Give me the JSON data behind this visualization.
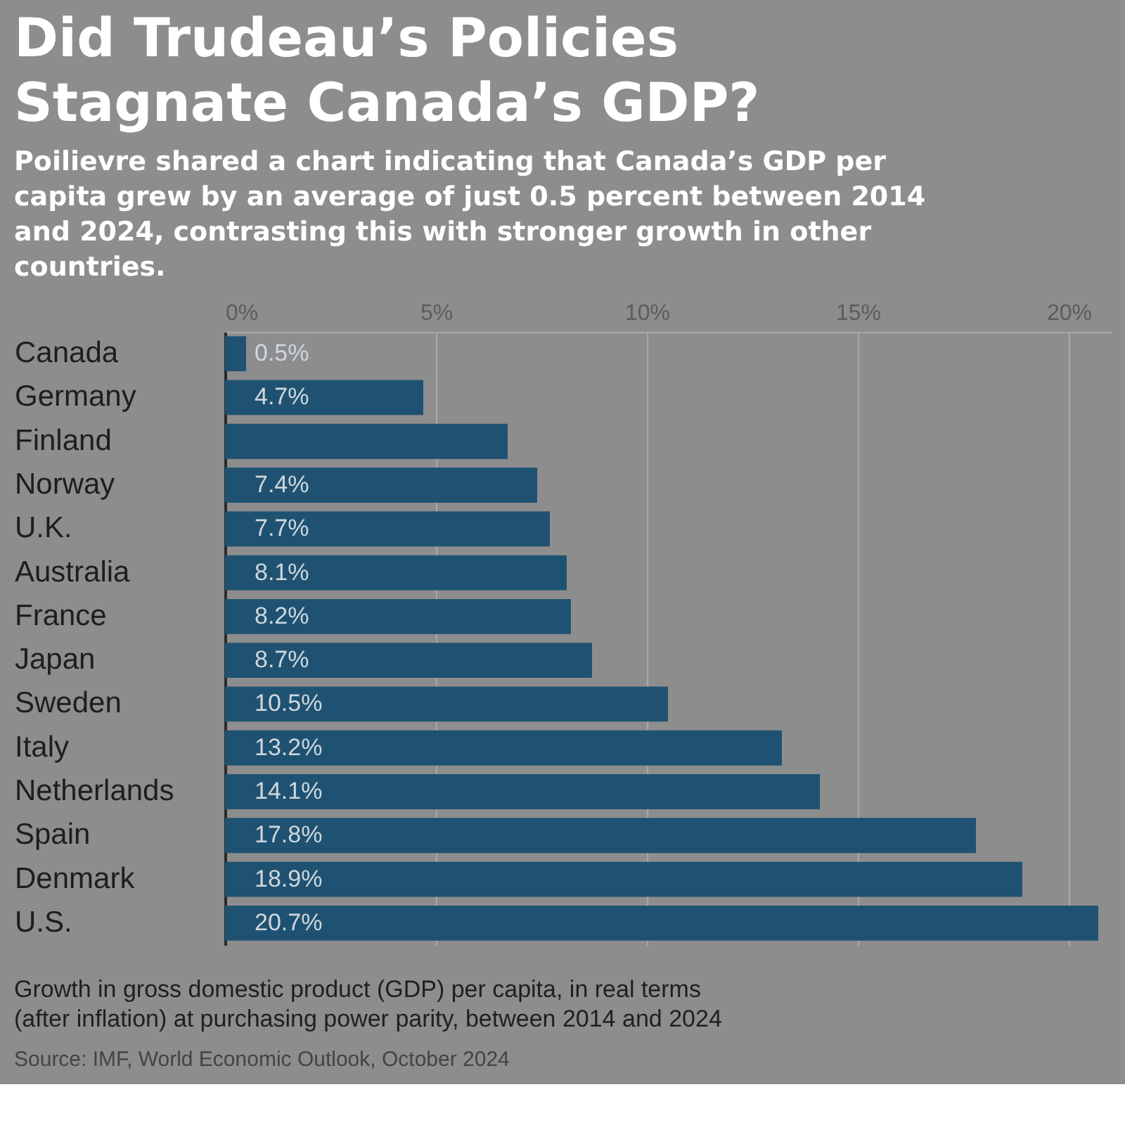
{
  "chart_data": {
    "type": "bar",
    "orientation": "horizontal",
    "title": "Did Trudeau’s Policies Stagnate Canada’s GDP?",
    "subtitle": "Poilievre shared a chart indicating that Canada’s GDP per capita grew by an average of just 0.5 percent between 2014 and 2024, contrasting this with stronger growth in other countries.",
    "categories": [
      "Canada",
      "Germany",
      "Finland",
      "Norway",
      "U.K.",
      "Australia",
      "France",
      "Japan",
      "Sweden",
      "Italy",
      "Netherlands",
      "Spain",
      "Denmark",
      "U.S."
    ],
    "values": [
      0.5,
      4.7,
      6.7,
      7.4,
      7.7,
      8.1,
      8.2,
      8.7,
      10.5,
      13.2,
      14.1,
      17.8,
      18.9,
      20.7
    ],
    "value_labels": [
      "0.5%",
      "4.7%",
      null,
      "7.4%",
      "7.7%",
      "8.1%",
      "8.2%",
      "8.7%",
      "10.5%",
      "13.2%",
      "14.1%",
      "17.8%",
      "18.9%",
      "20.7%"
    ],
    "color": "#1f5272",
    "xlim": [
      0,
      21
    ],
    "xticks": [
      {
        "value": 0,
        "label": "0%"
      },
      {
        "value": 5,
        "label": "5%"
      },
      {
        "value": 10,
        "label": "10%"
      },
      {
        "value": 15,
        "label": "15%"
      },
      {
        "value": 20,
        "label": "20%"
      }
    ],
    "grid": "x",
    "annotations": [
      "Growth in gross domestic product (GDP) per capita, in real terms (after inflation) at purchasing power parity, between 2014 and 2024",
      "Source: IMF, World Economic Outlook, October 2024"
    ]
  }
}
